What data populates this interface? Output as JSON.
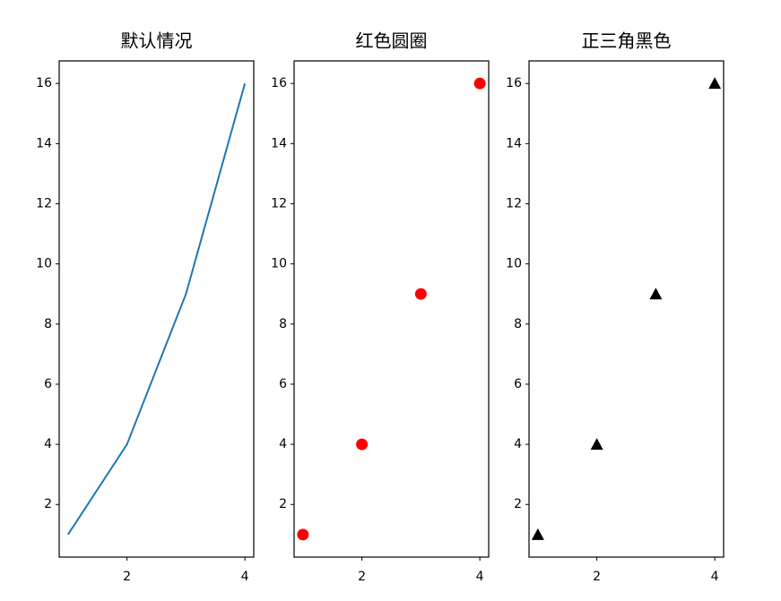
{
  "chart_data": [
    {
      "type": "line",
      "title": "默认情况",
      "x": [
        1,
        2,
        3,
        4
      ],
      "values": [
        1,
        4,
        9,
        16
      ],
      "color": "#1f77b4",
      "marker": null,
      "xlim": [
        0.85,
        4.15
      ],
      "ylim": [
        0.25,
        16.75
      ],
      "xticks": [
        2,
        4
      ],
      "yticks": [
        2,
        4,
        6,
        8,
        10,
        12,
        14,
        16
      ]
    },
    {
      "type": "scatter",
      "title": "红色圆圈",
      "x": [
        1,
        2,
        3,
        4
      ],
      "values": [
        1,
        4,
        9,
        16
      ],
      "color": "#ff0000",
      "marker": "circle",
      "xlim": [
        0.85,
        4.15
      ],
      "ylim": [
        0.25,
        16.75
      ],
      "xticks": [
        2,
        4
      ],
      "yticks": [
        2,
        4,
        6,
        8,
        10,
        12,
        14,
        16
      ]
    },
    {
      "type": "scatter",
      "title": "正三角黑色",
      "x": [
        1,
        2,
        3,
        4
      ],
      "values": [
        1,
        4,
        9,
        16
      ],
      "color": "#000000",
      "marker": "triangle",
      "xlim": [
        0.85,
        4.15
      ],
      "ylim": [
        0.25,
        16.75
      ],
      "xticks": [
        2,
        4
      ],
      "yticks": [
        2,
        4,
        6,
        8,
        10,
        12,
        14,
        16
      ]
    }
  ]
}
